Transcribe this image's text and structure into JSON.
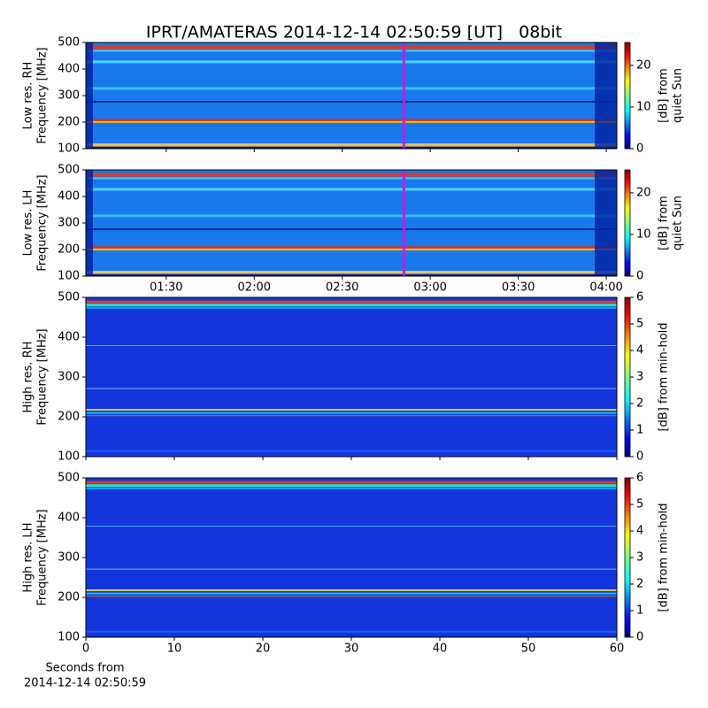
{
  "chart_data": [
    {
      "type": "spectrogram",
      "title": "IPRT/AMATERAS 2014-12-14 02:50:59 [UT]   08bit",
      "ylabel": [
        "Low res. RH",
        "Frequency [MHz]"
      ],
      "ylim": [
        100,
        500
      ],
      "yticks": [
        100,
        200,
        300,
        400,
        500
      ],
      "xlim": [
        62.6,
        243.6
      ],
      "vline": 171,
      "vline_color": "#c020e0",
      "style": "low",
      "colorbar_label": [
        "[dB] from",
        "quiet Sun"
      ],
      "clim": [
        0,
        25.5
      ],
      "cticks": [
        0,
        10,
        20
      ]
    },
    {
      "type": "spectrogram",
      "ylabel": [
        "Low res. LH",
        "Frequency [MHz]"
      ],
      "ylim": [
        100,
        500
      ],
      "yticks": [
        100,
        200,
        300,
        400,
        500
      ],
      "xlim": [
        62.6,
        243.6
      ],
      "xticks": [
        {
          "value": 90,
          "label": "01:30"
        },
        {
          "value": 120,
          "label": "02:00"
        },
        {
          "value": 150,
          "label": "02:30"
        },
        {
          "value": 180,
          "label": "03:00"
        },
        {
          "value": 210,
          "label": "03:30"
        },
        {
          "value": 240,
          "label": "04:00"
        }
      ],
      "vline": 171,
      "vline_color": "#c020e0",
      "style": "low",
      "colorbar_label": [
        "[dB] from",
        "quiet Sun"
      ],
      "clim": [
        0,
        25.5
      ],
      "cticks": [
        0,
        10,
        20
      ]
    },
    {
      "type": "spectrogram",
      "ylabel": [
        "High res. RH",
        "Frequency [MHz]"
      ],
      "ylim": [
        100,
        500
      ],
      "yticks": [
        100,
        200,
        300,
        400,
        500
      ],
      "xlim": [
        0,
        60
      ],
      "style": "high",
      "colorbar_label": [
        "[dB] from min-hold"
      ],
      "clim": [
        0,
        6
      ],
      "cticks": [
        0,
        1,
        2,
        3,
        4,
        5,
        6
      ]
    },
    {
      "type": "spectrogram",
      "ylabel": [
        "High res. LH",
        "Frequency [MHz]"
      ],
      "ylim": [
        100,
        500
      ],
      "yticks": [
        100,
        200,
        300,
        400,
        500
      ],
      "xlim": [
        0,
        60
      ],
      "xticks": [
        0,
        10,
        20,
        30,
        40,
        50,
        60
      ],
      "xlabel": [
        "Seconds from",
        "2014-12-14 02:50:59"
      ],
      "style": "high",
      "colorbar_label": [
        "[dB] from min-hold"
      ],
      "clim": [
        0,
        6
      ],
      "cticks": [
        0,
        1,
        2,
        3,
        4,
        5,
        6
      ]
    }
  ]
}
